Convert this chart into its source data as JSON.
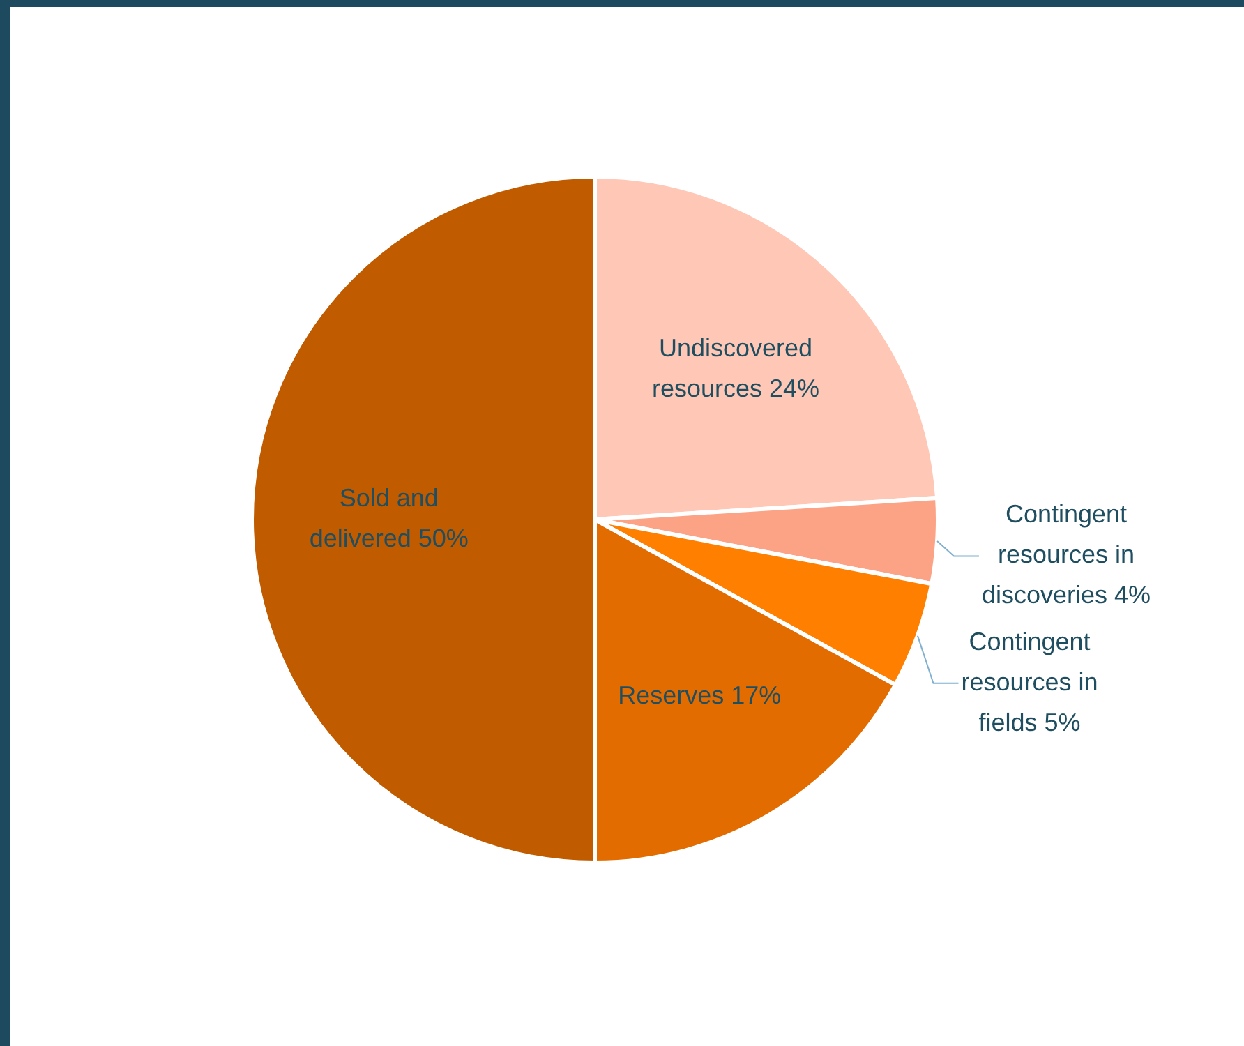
{
  "chart_data": {
    "type": "pie",
    "categories": [
      "Undiscovered resources",
      "Contingent resources in discoveries",
      "Contingent resources in fields",
      "Reserves",
      "Sold and delivered"
    ],
    "values": [
      24,
      4,
      5,
      17,
      50
    ],
    "value_labels": [
      "24%",
      "4%",
      "5%",
      "17%",
      "50%"
    ],
    "colors": [
      "#ffc7b5",
      "#fca385",
      "#ff7f00",
      "#e36c00",
      "#c05b00"
    ],
    "legend": false
  }
}
